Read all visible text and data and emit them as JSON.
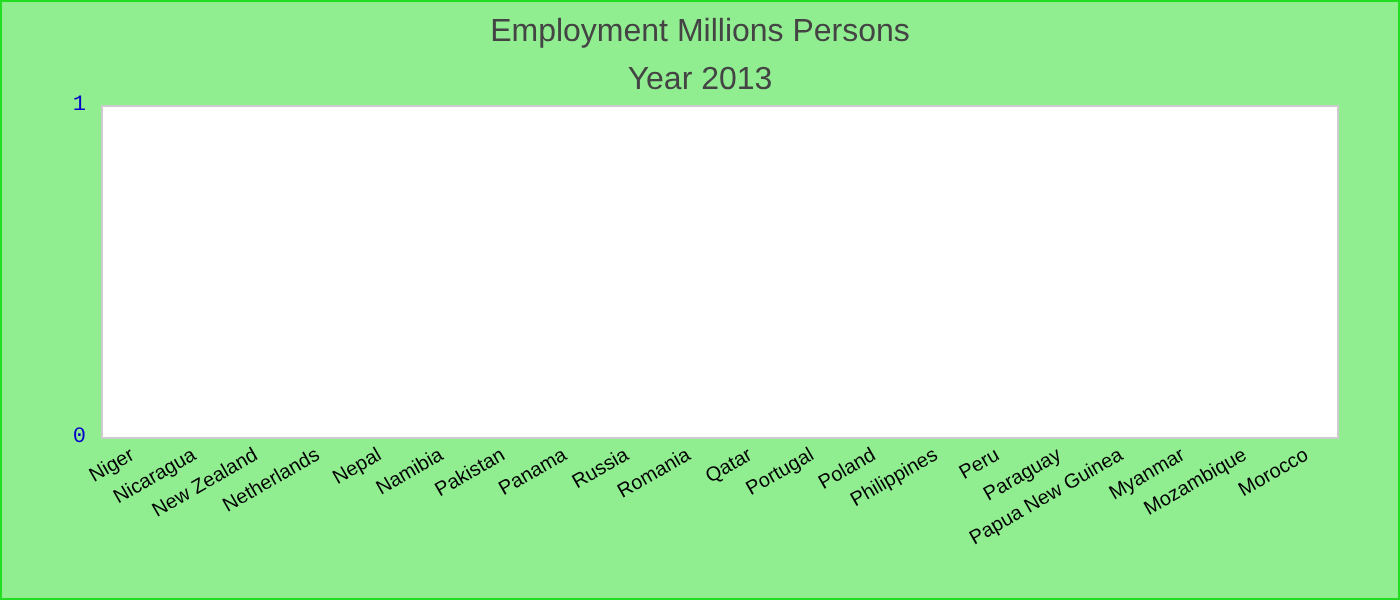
{
  "chart_data": {
    "type": "bar",
    "title": "Employment Millions Persons",
    "subtitle": "Year 2013",
    "categories": [
      "Niger",
      "Nicaragua",
      "New Zealand",
      "Netherlands",
      "Nepal",
      "Namibia",
      "Pakistan",
      "Panama",
      "Russia",
      "Romania",
      "Qatar",
      "Portugal",
      "Poland",
      "Philippines",
      "Peru",
      "Paraguay",
      "Papua New Guinea",
      "Myanmar",
      "Mozambique",
      "Morocco"
    ],
    "values": [
      0,
      0,
      0,
      0,
      0,
      0,
      0,
      0,
      0,
      0,
      0,
      0,
      0,
      0,
      0,
      0,
      0,
      0,
      0,
      0
    ],
    "ylim": [
      0,
      1
    ],
    "yticks": [
      0,
      1
    ]
  }
}
